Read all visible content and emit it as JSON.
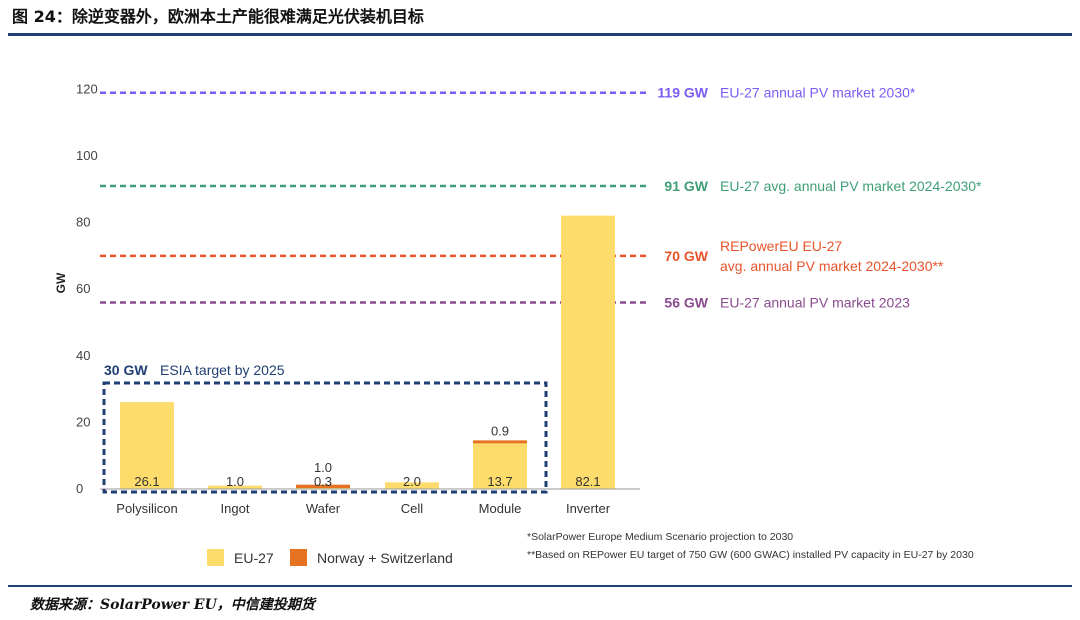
{
  "header": {
    "title": "图 24：除逆变器外，欧洲本土产能很难满足光伏装机目标"
  },
  "source": "数据来源：SolarPower EU，中信建投期货",
  "colors": {
    "eu": "#fddc6b",
    "nor": "#e57321",
    "frame": "#1f3f73"
  },
  "chart_data": {
    "type": "bar",
    "ylabel": "GW",
    "ylim": [
      0,
      120
    ],
    "yticks": [
      0,
      20,
      40,
      60,
      80,
      100,
      120
    ],
    "categories": [
      "Polysilicon",
      "Ingot",
      "Wafer",
      "Cell",
      "Module",
      "Inverter"
    ],
    "series": [
      {
        "name": "EU-27",
        "color": "#fddc6b",
        "values": [
          26.1,
          1.0,
          0.3,
          2.0,
          13.7,
          82.1
        ],
        "labels": [
          "26.1",
          "1.0",
          "0.3",
          "2.0",
          "13.7",
          "82.1"
        ]
      },
      {
        "name": "Norway + Switzerland",
        "color": "#e57321",
        "values": [
          0,
          0,
          1.0,
          0,
          0.9,
          0
        ],
        "labels": [
          "",
          "",
          "1.0",
          "",
          "0.9",
          ""
        ]
      }
    ],
    "reference_lines": [
      {
        "value": 119,
        "gw_label": "119 GW",
        "text": [
          "EU-27 annual PV market  2030*"
        ],
        "color": "#7b5cf0"
      },
      {
        "value": 91,
        "gw_label": "91 GW",
        "text": [
          "EU-27 avg. annual PV market 2024-2030*"
        ],
        "color": "#3f9e77"
      },
      {
        "value": 70,
        "gw_label": "70 GW",
        "text": [
          "REPowerEU EU-27",
          "avg. annual PV market 2024-2030**"
        ],
        "color": "#e8542a"
      },
      {
        "value": 56,
        "gw_label": "56 GW",
        "text": [
          "EU-27 annual PV market 2023"
        ],
        "color": "#8a4b8f"
      }
    ],
    "target_box": {
      "value": 30,
      "gw_label": "30 GW",
      "text": "ESIA target by 2025",
      "color": "#1f3f73"
    },
    "legend": [
      "EU-27",
      "Norway + Switzerland"
    ],
    "footnotes": [
      "*SolarPower Europe Medium Scenario projection to 2030",
      "**Based on REPower EU target of 750 GW (600 GWAC) installed PV capacity in EU-27 by 2030"
    ]
  }
}
